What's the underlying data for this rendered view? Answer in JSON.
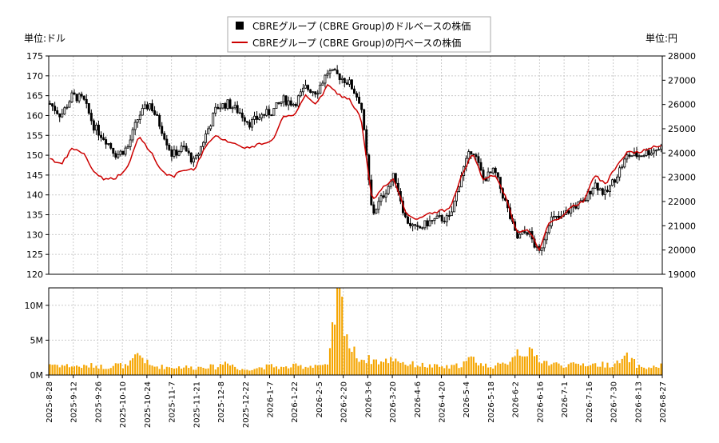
{
  "chart_data": {
    "type": "candlestick+line+bar",
    "legend": {
      "placement": "top-center",
      "entries": [
        {
          "label": "CBREグループ (CBRE Group)のドルベースの株価",
          "color": "#000000",
          "marker": "square"
        },
        {
          "label": "CBREグループ (CBRE Group)の円ベースの株価",
          "color": "#cc0000",
          "marker": "line"
        }
      ]
    },
    "left_unit": "単位:ドル",
    "right_unit": "単位:円",
    "y_left": {
      "min": 120,
      "max": 175,
      "ticks": [
        120,
        125,
        130,
        135,
        140,
        145,
        150,
        155,
        160,
        165,
        170,
        175
      ]
    },
    "y_right": {
      "min": 19000,
      "max": 28000,
      "ticks": [
        19000,
        20000,
        21000,
        22000,
        23000,
        24000,
        25000,
        26000,
        27000,
        28000
      ]
    },
    "volume": {
      "max": 12500000,
      "ticks": [
        {
          "v": 0,
          "label": "0M"
        },
        {
          "v": 5000000,
          "label": "5M"
        },
        {
          "v": 10000000,
          "label": "10M"
        }
      ],
      "color": "#f5a500"
    },
    "x_ticks": [
      "2025-8-28",
      "2025-9-12",
      "2025-9-26",
      "2025-10-10",
      "2025-10-24",
      "2025-11-7",
      "2025-11-21",
      "2025-12-8",
      "2025-12-22",
      "2026-1-7",
      "2026-1-22",
      "2026-2-5",
      "2026-2-20",
      "2026-3-6",
      "2026-3-20",
      "2026-4-6",
      "2026-4-20",
      "2026-5-4",
      "2026-5-18",
      "2026-6-2",
      "2026-6-16",
      "2026-7-1",
      "2026-7-16",
      "2026-7-30",
      "2026-8-13",
      "2026-8-27"
    ],
    "usd_close_weekly": [
      163,
      160,
      165,
      164,
      157,
      154,
      150,
      152,
      160,
      163,
      157,
      150,
      152,
      148,
      155,
      162,
      163,
      161,
      158,
      160,
      161,
      164,
      163,
      167,
      166,
      171,
      170,
      168,
      163,
      135,
      140,
      145,
      134,
      131,
      133,
      134,
      134,
      145,
      152,
      144,
      146,
      138,
      129,
      131,
      125,
      134,
      134,
      137,
      138,
      143,
      140,
      145,
      150,
      150,
      151,
      152
    ],
    "jpy_close_weekly": [
      23800,
      23500,
      24200,
      24000,
      23200,
      22900,
      23000,
      23400,
      24700,
      24100,
      23300,
      23000,
      23300,
      23300,
      24300,
      24700,
      24500,
      24300,
      24200,
      24400,
      24500,
      25500,
      25500,
      26400,
      26000,
      26800,
      26400,
      26200,
      25400,
      22000,
      22600,
      22900,
      21600,
      21200,
      21500,
      21600,
      21700,
      23000,
      24000,
      22900,
      23100,
      22200,
      20700,
      20900,
      20000,
      21200,
      21300,
      21800,
      22000,
      23100,
      22700,
      23500,
      24100,
      24000,
      24200,
      24300
    ],
    "volume_weekly_m": [
      1.6,
      1.4,
      1.3,
      1.2,
      1.4,
      1.1,
      1.5,
      1.2,
      3.1,
      1.3,
      1.2,
      1.1,
      1.2,
      1.0,
      1.3,
      1.1,
      2.1,
      0.7,
      0.9,
      1.1,
      1.3,
      1.0,
      1.3,
      1.2,
      1.5,
      1.2,
      12.4,
      3.8,
      2.3,
      2.2,
      1.8,
      2.5,
      1.6,
      1.5,
      1.3,
      1.2,
      1.1,
      1.5,
      2.4,
      1.4,
      1.3,
      1.5,
      3.5,
      3.3,
      2.4,
      1.6,
      1.5,
      1.4,
      1.6,
      1.5,
      1.5,
      1.6,
      2.6,
      1.2,
      1.0,
      1.4
    ]
  }
}
